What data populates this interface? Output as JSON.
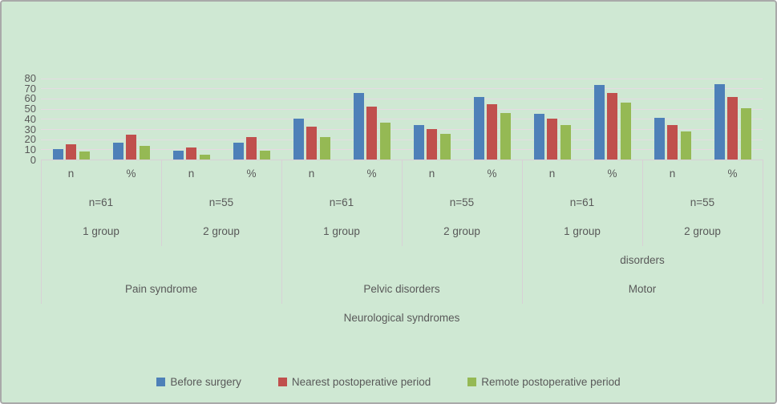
{
  "chart_data": {
    "type": "bar",
    "title": "",
    "xlabel": "Neurological syndromes",
    "ylabel": "",
    "ylim": [
      0,
      80
    ],
    "ytick_step": 10,
    "yticks": [
      0,
      10,
      20,
      30,
      40,
      50,
      60,
      70,
      80
    ],
    "grid": true,
    "legend_position": "bottom",
    "categories": [
      "n",
      "%",
      "n",
      "%",
      "n",
      "%",
      "n",
      "%",
      "n",
      "%",
      "n",
      "%"
    ],
    "groups": [
      {
        "size_label": "n=61",
        "group_label": "1 group"
      },
      {
        "size_label": "n=55",
        "group_label": "2 group"
      },
      {
        "size_label": "n=61",
        "group_label": "1 group"
      },
      {
        "size_label": "n=55",
        "group_label": "2 group"
      },
      {
        "size_label": "n=61",
        "group_label": "1 group"
      },
      {
        "size_label": "n=55",
        "group_label": "2 group"
      }
    ],
    "sections": [
      {
        "label_line1": "",
        "label_line2": "Pain syndrome"
      },
      {
        "label_line1": "",
        "label_line2": "Pelvic disorders"
      },
      {
        "label_line1": "disorders",
        "label_line2": "Motor"
      }
    ],
    "root_label": "Neurological syndromes",
    "series": [
      {
        "name": "Before surgery",
        "color": "#4e80b8",
        "values": [
          10,
          16.4,
          9,
          16.4,
          40,
          65.6,
          34,
          61.8,
          45,
          73.8,
          41,
          74.5
        ]
      },
      {
        "name": "Nearest postoperative period",
        "color": "#c0504d",
        "values": [
          15,
          24.6,
          12,
          21.8,
          32,
          52.5,
          30,
          54.5,
          40,
          65.6,
          34,
          61.8
        ]
      },
      {
        "name": "Remote postoperative period",
        "color": "#95b954",
        "values": [
          8,
          13.1,
          5,
          9.1,
          22,
          36.1,
          25,
          45.5,
          34,
          55.7,
          28,
          50.9
        ]
      }
    ]
  },
  "colors": {
    "background": "#cfe8d3",
    "gridline": "#e6dbe2",
    "separator": "#d8d0d6",
    "text": "#595959",
    "frame_border": "#a9a9a9"
  }
}
